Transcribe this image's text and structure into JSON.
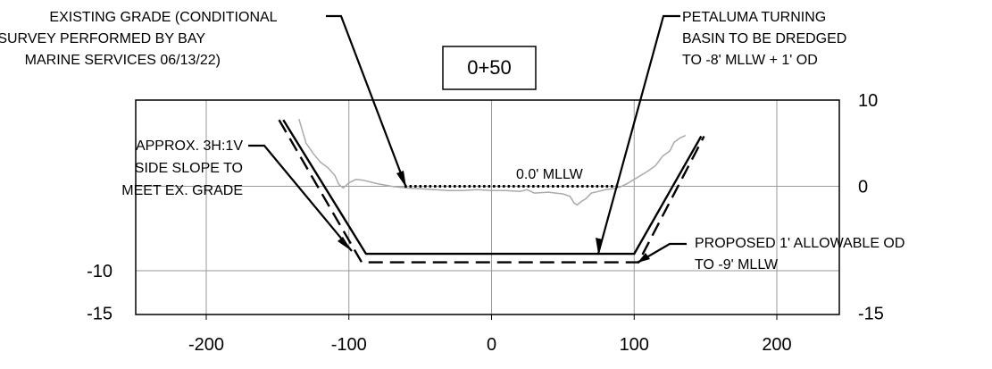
{
  "station": "0+50",
  "chart_data": {
    "type": "line",
    "xlim": [
      -250,
      250
    ],
    "ylim": [
      -15,
      10
    ],
    "x_ticks": [
      "-200",
      "-100",
      "0",
      "100",
      "200"
    ],
    "y_ticks_right": [
      "10",
      "0",
      "-15"
    ],
    "y_ticks_left": [
      "-10",
      "-15"
    ],
    "grid": true,
    "series": [
      {
        "role": "existing_grade",
        "color": "#aaaaaa",
        "points": [
          [
            -135,
            7.8
          ],
          [
            -130,
            5
          ],
          [
            -125,
            3.8
          ],
          [
            -120,
            2.8
          ],
          [
            -115,
            2.2
          ],
          [
            -110,
            1.3
          ],
          [
            -107,
            0.2
          ],
          [
            -104,
            -0.2
          ],
          [
            -100,
            0.4
          ],
          [
            -95,
            0.8
          ],
          [
            -90,
            0.7
          ],
          [
            -80,
            0.3
          ],
          [
            -70,
            0
          ],
          [
            -60,
            -0.2
          ],
          [
            -50,
            -0.3
          ],
          [
            -40,
            -0.4
          ],
          [
            -30,
            -0.5
          ],
          [
            -20,
            -0.5
          ],
          [
            -10,
            -0.4
          ],
          [
            0,
            -0.5
          ],
          [
            10,
            -0.5
          ],
          [
            20,
            -0.6
          ],
          [
            25,
            -0.4
          ],
          [
            30,
            -0.8
          ],
          [
            40,
            -0.7
          ],
          [
            45,
            -0.8
          ],
          [
            50,
            -0.9
          ],
          [
            55,
            -1.2
          ],
          [
            58,
            -2
          ],
          [
            60,
            -2.2
          ],
          [
            63,
            -1.8
          ],
          [
            66,
            -1.5
          ],
          [
            70,
            -0.8
          ],
          [
            75,
            -0.6
          ],
          [
            80,
            -0.4
          ],
          [
            85,
            -0.3
          ],
          [
            90,
            -0.1
          ],
          [
            95,
            0.3
          ],
          [
            100,
            0.8
          ],
          [
            105,
            1.3
          ],
          [
            110,
            1.8
          ],
          [
            115,
            2.4
          ],
          [
            120,
            3.5
          ],
          [
            125,
            4.1
          ],
          [
            128,
            5.1
          ],
          [
            132,
            5.6
          ],
          [
            136,
            5.9
          ]
        ]
      },
      {
        "role": "design_dredge_template",
        "color": "#000000",
        "points": [
          [
            -146,
            7.7
          ],
          [
            -88,
            -8
          ],
          [
            100,
            -8
          ],
          [
            147,
            5.8
          ]
        ]
      },
      {
        "role": "allowable_overdepth",
        "color": "#000000",
        "points": [
          [
            -149,
            7.7
          ],
          [
            -91,
            -9
          ],
          [
            103,
            -9
          ],
          [
            149,
            5.8
          ]
        ]
      },
      {
        "role": "mllw_datum",
        "color": "#000000",
        "points": [
          [
            -61,
            0
          ],
          [
            90,
            0
          ]
        ]
      }
    ]
  },
  "notes": {
    "existing_grade": [
      "EXISTING GRADE (CONDITIONAL",
      "SURVEY PERFORMED BY BAY",
      "MARINE SERVICES 06/13/22)"
    ],
    "turning_basin": [
      "PETALUMA TURNING",
      "BASIN TO BE DREDGED",
      "TO -8' MLLW + 1' OD"
    ],
    "side_slope": [
      "APPROX. 3H:1V",
      "SIDE SLOPE TO",
      "MEET EX. GRADE"
    ],
    "overdepth": [
      "PROPOSED 1' ALLOWABLE OD",
      "TO -9' MLLW"
    ],
    "mllw": "0.0' MLLW"
  }
}
